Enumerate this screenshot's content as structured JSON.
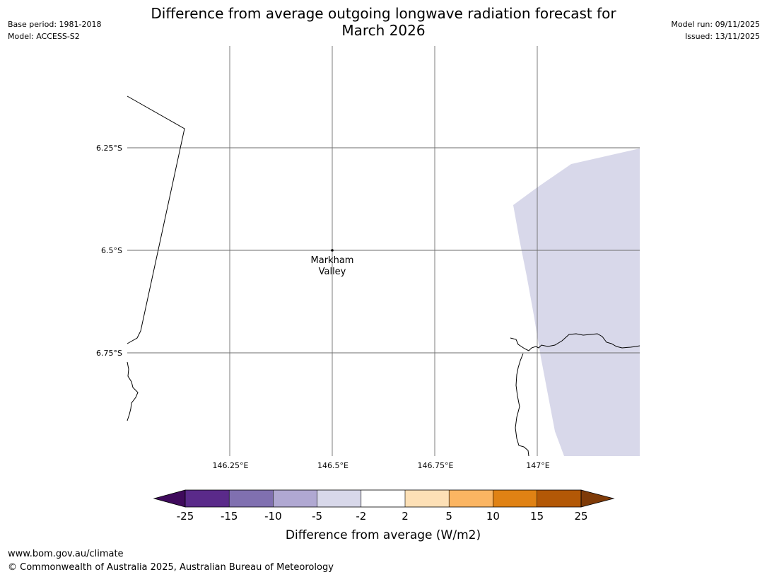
{
  "header": {
    "title_line1": "Difference from average outgoing longwave radiation forecast for",
    "title_line2": "March 2026",
    "base_period": "Base period: 1981-2018",
    "model": "Model: ACCESS-S2",
    "model_run": "Model run: 09/11/2025",
    "issued": "Issued: 13/11/2025"
  },
  "map": {
    "lat_labels": [
      "6.25°S",
      "6.5°S",
      "6.75°S"
    ],
    "lon_labels": [
      "146.25°E",
      "146.5°E",
      "146.75°E",
      "147°E"
    ],
    "place": {
      "name_line1": "Markham",
      "name_line2": "Valley",
      "lat": -6.5,
      "lon": 146.5
    },
    "anomaly_fill_color": "#d8d8ea",
    "anomaly_category": "-5 to -2"
  },
  "colorbar": {
    "label": "Difference from average (W/m2)",
    "ticks": [
      "-25",
      "-15",
      "-10",
      "-5",
      "-2",
      "2",
      "5",
      "10",
      "15",
      "25"
    ],
    "colors": [
      "#3f0a5c",
      "#5a2a8a",
      "#8070b0",
      "#b0a8d2",
      "#d8d8ea",
      "#ffffff",
      "#fde0b6",
      "#fbb562",
      "#e08214",
      "#b35806",
      "#7f3b08"
    ]
  },
  "footer": {
    "url": "www.bom.gov.au/climate",
    "copyright": "© Commonwealth of Australia 2025, Australian Bureau of Meteorology"
  }
}
